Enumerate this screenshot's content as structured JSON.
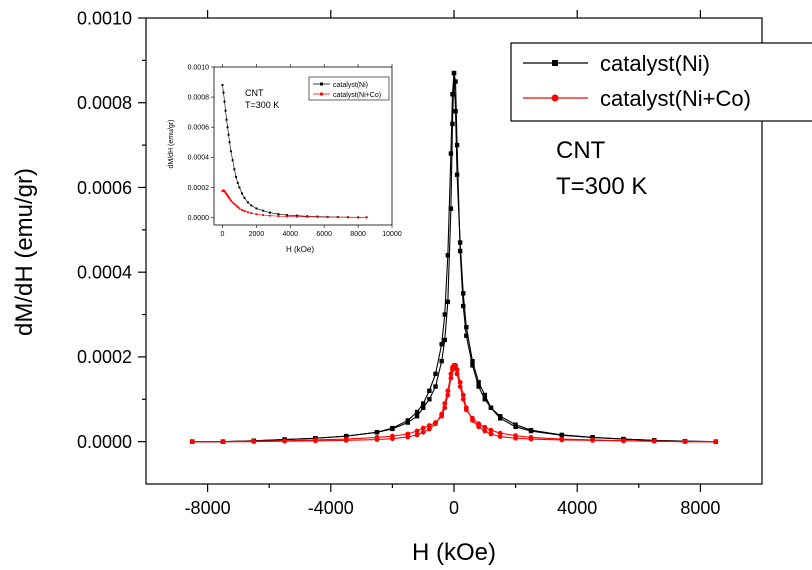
{
  "chart_data": [
    {
      "type": "line",
      "xlabel": "H (kOe)",
      "ylabel": "dM/dH (emu/gr)",
      "xlim": [
        -10000,
        10000
      ],
      "ylim": [
        -0.0001,
        0.001
      ],
      "xticks": [
        -8000,
        -4000,
        0,
        4000,
        8000
      ],
      "xtick_labels": [
        "-8000",
        "-4000",
        "0",
        "4000",
        "8000"
      ],
      "yticks": [
        0,
        0.0002,
        0.0004,
        0.0006,
        0.0008,
        0.001
      ],
      "ytick_labels": [
        "0.0000",
        "0.0002",
        "0.0004",
        "0.0006",
        "0.0008",
        "0.0010"
      ],
      "legend": {
        "placement": "top-right"
      },
      "annotation": {
        "line1": "CNT",
        "line2": "T=300 K"
      },
      "series": [
        {
          "name": "catalyst(Ni)",
          "color": "#000000",
          "marker": "square",
          "branch_up": [
            [
              -8500,
              0.0
            ],
            [
              -7500,
              0.0
            ],
            [
              -6500,
              2e-06
            ],
            [
              -5500,
              5e-06
            ],
            [
              -4500,
              8e-06
            ],
            [
              -3500,
              1.3e-05
            ],
            [
              -2500,
              2.2e-05
            ],
            [
              -2000,
              3e-05
            ],
            [
              -1500,
              4.5e-05
            ],
            [
              -1200,
              6e-05
            ],
            [
              -1000,
              8e-05
            ],
            [
              -800,
              0.0001
            ],
            [
              -600,
              0.00013
            ],
            [
              -400,
              0.00019
            ],
            [
              -300,
              0.00024
            ],
            [
              -200,
              0.00033
            ],
            [
              -100,
              0.00055
            ],
            [
              -50,
              0.00075
            ],
            [
              0,
              0.00087
            ],
            [
              50,
              0.00085
            ],
            [
              100,
              0.0007
            ],
            [
              200,
              0.00045
            ],
            [
              300,
              0.00032
            ],
            [
              400,
              0.00025
            ],
            [
              600,
              0.00018
            ],
            [
              800,
              0.00013
            ],
            [
              1000,
              0.0001
            ],
            [
              1200,
              8e-05
            ],
            [
              1500,
              5.5e-05
            ],
            [
              2000,
              3.5e-05
            ],
            [
              2500,
              2.5e-05
            ],
            [
              3500,
              1.5e-05
            ],
            [
              4500,
              1e-05
            ],
            [
              5500,
              6e-06
            ],
            [
              6500,
              3e-06
            ],
            [
              7500,
              1e-06
            ],
            [
              8500,
              0.0
            ]
          ],
          "branch_down": [
            [
              8500,
              0.0
            ],
            [
              7500,
              1e-06
            ],
            [
              6500,
              3e-06
            ],
            [
              5500,
              6e-06
            ],
            [
              4500,
              1e-05
            ],
            [
              3500,
              1.6e-05
            ],
            [
              2500,
              2.7e-05
            ],
            [
              2000,
              4e-05
            ],
            [
              1500,
              6e-05
            ],
            [
              1200,
              8e-05
            ],
            [
              1000,
              0.00011
            ],
            [
              800,
              0.00014
            ],
            [
              600,
              0.00019
            ],
            [
              400,
              0.00027
            ],
            [
              300,
              0.00035
            ],
            [
              200,
              0.00047
            ],
            [
              100,
              0.00063
            ],
            [
              50,
              0.00078
            ],
            [
              0,
              0.00087
            ],
            [
              -50,
              0.00082
            ],
            [
              -100,
              0.00068
            ],
            [
              -200,
              0.00044
            ],
            [
              -300,
              0.0003
            ],
            [
              -400,
              0.00023
            ],
            [
              -600,
              0.00016
            ],
            [
              -800,
              0.00012
            ],
            [
              -1000,
              9e-05
            ],
            [
              -1200,
              7e-05
            ],
            [
              -1500,
              5e-05
            ],
            [
              -2000,
              3.2e-05
            ],
            [
              -2500,
              2.2e-05
            ],
            [
              -3500,
              1.3e-05
            ],
            [
              -4500,
              8e-06
            ],
            [
              -5500,
              5e-06
            ],
            [
              -6500,
              2e-06
            ],
            [
              -7500,
              0.0
            ],
            [
              -8500,
              0.0
            ]
          ]
        },
        {
          "name": "catalyst(Ni+Co)",
          "color": "#ff0000",
          "marker": "circle",
          "branch_up": [
            [
              -8500,
              0.0
            ],
            [
              -7500,
              0.0
            ],
            [
              -6500,
              1e-06
            ],
            [
              -5500,
              2e-06
            ],
            [
              -4500,
              4e-06
            ],
            [
              -3500,
              6e-06
            ],
            [
              -2500,
              1e-05
            ],
            [
              -2000,
              1.3e-05
            ],
            [
              -1500,
              1.8e-05
            ],
            [
              -1200,
              2.5e-05
            ],
            [
              -1000,
              3.2e-05
            ],
            [
              -800,
              3.8e-05
            ],
            [
              -600,
              4.5e-05
            ],
            [
              -400,
              6e-05
            ],
            [
              -300,
              8e-05
            ],
            [
              -200,
              0.00011
            ],
            [
              -100,
              0.00015
            ],
            [
              -50,
              0.00017
            ],
            [
              0,
              0.00018
            ],
            [
              50,
              0.00018
            ],
            [
              100,
              0.00017
            ],
            [
              200,
              0.00014
            ],
            [
              300,
              0.00011
            ],
            [
              400,
              8e-05
            ],
            [
              600,
              5e-05
            ],
            [
              800,
              3.5e-05
            ],
            [
              1000,
              2.5e-05
            ],
            [
              1200,
              1.8e-05
            ],
            [
              1500,
              1.2e-05
            ],
            [
              2000,
              8e-06
            ],
            [
              2500,
              6e-06
            ],
            [
              3500,
              4e-06
            ],
            [
              4500,
              3e-06
            ],
            [
              5500,
              2e-06
            ],
            [
              6500,
              1e-06
            ],
            [
              7500,
              0.0
            ],
            [
              8500,
              0.0
            ]
          ],
          "branch_down": [
            [
              8500,
              0.0
            ],
            [
              7500,
              0.0
            ],
            [
              6500,
              1e-06
            ],
            [
              5500,
              2e-06
            ],
            [
              4500,
              4e-06
            ],
            [
              3500,
              6e-06
            ],
            [
              2500,
              1e-05
            ],
            [
              2000,
              1.4e-05
            ],
            [
              1500,
              2e-05
            ],
            [
              1200,
              2.7e-05
            ],
            [
              1000,
              3.4e-05
            ],
            [
              800,
              4.2e-05
            ],
            [
              600,
              5.5e-05
            ],
            [
              400,
              7.5e-05
            ],
            [
              300,
              0.0001
            ],
            [
              200,
              0.00013
            ],
            [
              100,
              0.00016
            ],
            [
              50,
              0.000175
            ],
            [
              0,
              0.00018
            ],
            [
              -50,
              0.000175
            ],
            [
              -100,
              0.00016
            ],
            [
              -200,
              0.00012
            ],
            [
              -300,
              9e-05
            ],
            [
              -400,
              6.5e-05
            ],
            [
              -600,
              4.2e-05
            ],
            [
              -800,
              3e-05
            ],
            [
              -1000,
              2.2e-05
            ],
            [
              -1200,
              1.6e-05
            ],
            [
              -1500,
              1.1e-05
            ],
            [
              -2000,
              7e-06
            ],
            [
              -2500,
              5e-06
            ],
            [
              -3500,
              3e-06
            ],
            [
              -4500,
              2e-06
            ],
            [
              -5500,
              1e-06
            ],
            [
              -6500,
              0.0
            ],
            [
              -7500,
              0.0
            ],
            [
              -8500,
              0.0
            ]
          ]
        }
      ]
    },
    {
      "type": "line",
      "xlabel": "H (kOe)",
      "ylabel": "dM/dH (emu/gr)",
      "xlim": [
        -500,
        10000
      ],
      "ylim": [
        -5e-05,
        0.001
      ],
      "xticks": [
        0,
        2000,
        4000,
        6000,
        8000,
        10000
      ],
      "xtick_labels": [
        "0",
        "2000",
        "4000",
        "6000",
        "8000",
        "10000"
      ],
      "yticks": [
        0,
        0.0002,
        0.0004,
        0.0006,
        0.0008,
        0.001
      ],
      "ytick_labels": [
        "0.0000",
        "0.0002",
        "0.0004",
        "0.0006",
        "0.0008",
        "0.0010"
      ],
      "legend": {
        "placement": "top-right"
      },
      "annotation": {
        "line1": "CNT",
        "line2": "T=300 K"
      },
      "series": [
        {
          "name": "catalyst(Ni)",
          "color": "#000000",
          "marker": "square",
          "points": [
            [
              0,
              0.00088
            ],
            [
              60,
              0.00083
            ],
            [
              120,
              0.00077
            ],
            [
              180,
              0.00071
            ],
            [
              240,
              0.00065
            ],
            [
              300,
              0.0006
            ],
            [
              360,
              0.00055
            ],
            [
              420,
              0.0005
            ],
            [
              500,
              0.00044
            ],
            [
              600,
              0.00038
            ],
            [
              700,
              0.00032
            ],
            [
              800,
              0.00027
            ],
            [
              900,
              0.00023
            ],
            [
              1000,
              0.0002
            ],
            [
              1150,
              0.00016
            ],
            [
              1300,
              0.00013
            ],
            [
              1500,
              0.0001
            ],
            [
              1700,
              8e-05
            ],
            [
              2000,
              6e-05
            ],
            [
              2400,
              4.5e-05
            ],
            [
              2800,
              3.2e-05
            ],
            [
              3300,
              2.2e-05
            ],
            [
              3800,
              1.6e-05
            ],
            [
              4400,
              1.2e-05
            ],
            [
              5000,
              8e-06
            ],
            [
              5600,
              6e-06
            ],
            [
              6200,
              4e-06
            ],
            [
              6800,
              3e-06
            ],
            [
              7400,
              2e-06
            ],
            [
              8000,
              1e-06
            ],
            [
              8500,
              1e-06
            ]
          ]
        },
        {
          "name": "catalyst(Ni+Co)",
          "color": "#ff0000",
          "marker": "circle",
          "points": [
            [
              0,
              0.000175
            ],
            [
              60,
              0.00018
            ],
            [
              120,
              0.000175
            ],
            [
              180,
              0.000165
            ],
            [
              240,
              0.000155
            ],
            [
              300,
              0.000145
            ],
            [
              360,
              0.000135
            ],
            [
              420,
              0.000125
            ],
            [
              500,
              0.000112
            ],
            [
              600,
              0.0001
            ],
            [
              700,
              9e-05
            ],
            [
              800,
              8e-05
            ],
            [
              900,
              7e-05
            ],
            [
              1000,
              6e-05
            ],
            [
              1150,
              5e-05
            ],
            [
              1300,
              4.2e-05
            ],
            [
              1500,
              3.5e-05
            ],
            [
              1700,
              2.8e-05
            ],
            [
              2000,
              2.2e-05
            ],
            [
              2400,
              1.6e-05
            ],
            [
              2800,
              1.2e-05
            ],
            [
              3300,
              9e-06
            ],
            [
              3800,
              7e-06
            ],
            [
              4400,
              5e-06
            ],
            [
              5000,
              4e-06
            ],
            [
              5600,
              3e-06
            ],
            [
              6200,
              2e-06
            ],
            [
              6800,
              2e-06
            ],
            [
              7400,
              1e-06
            ],
            [
              8000,
              1e-06
            ],
            [
              8500,
              1e-06
            ]
          ]
        }
      ]
    }
  ]
}
